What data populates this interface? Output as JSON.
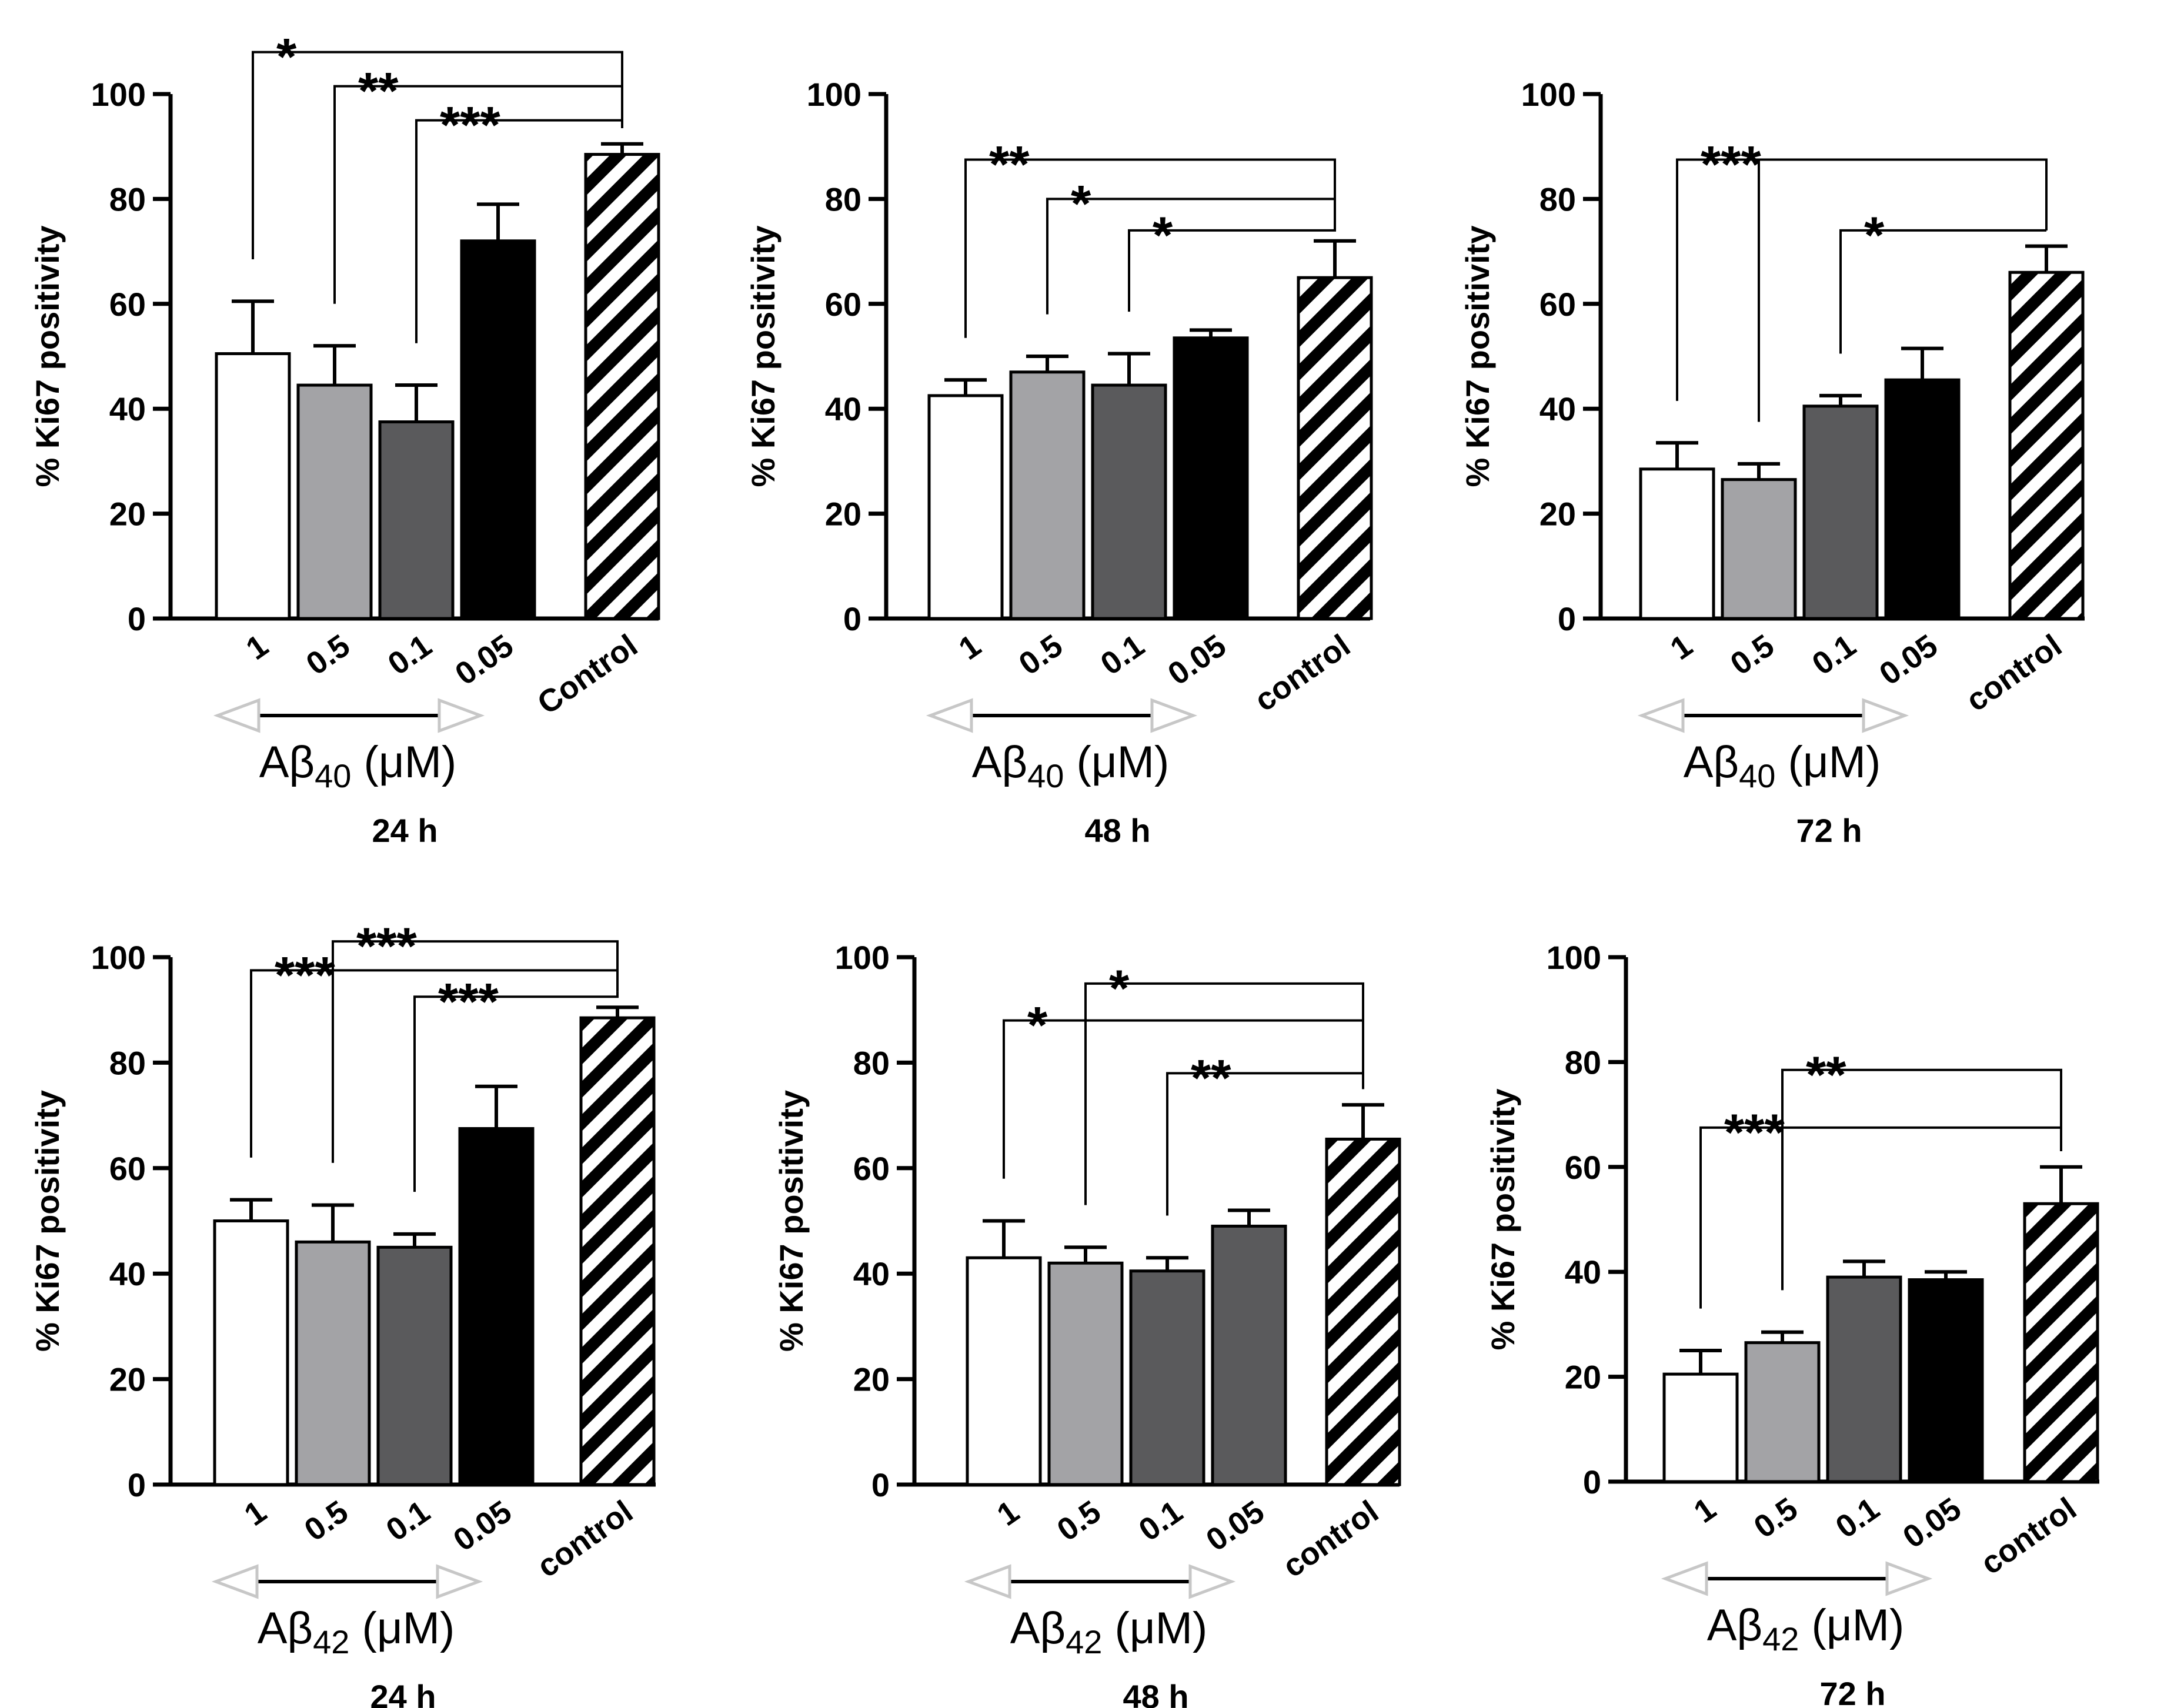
{
  "chart_data": [
    {
      "type": "bar",
      "panel": "top-left",
      "categories": [
        "1",
        "0.5",
        "0.1",
        "0.05",
        "Control"
      ],
      "values": [
        50.5,
        44.5,
        37.5,
        72,
        88.5
      ],
      "errors": [
        10,
        7.5,
        7,
        7,
        2
      ],
      "fills": [
        "white",
        "light-gray",
        "dark-gray",
        "black",
        "hatched"
      ],
      "ylabel": "% Ki67 positivity",
      "ylim": [
        0,
        100
      ],
      "yticks": [
        "0",
        "20",
        "40",
        "60",
        "80",
        "100"
      ],
      "group_label": "Aβ40 (μM)",
      "peptide": "Aβ",
      "peptide_sub": "40",
      "unit": " (μM)",
      "time_label": "24 h",
      "significance": [
        {
          "from": "1",
          "to": "Control",
          "stars": "*",
          "level": 108
        },
        {
          "from": "0.5",
          "to": "Control",
          "stars": "**",
          "level": 101.5
        },
        {
          "from": "0.1",
          "to": "Control",
          "stars": "***",
          "level": 95
        }
      ]
    },
    {
      "type": "bar",
      "panel": "top-middle",
      "categories": [
        "1",
        "0.5",
        "0.1",
        "0.05",
        "control"
      ],
      "values": [
        42.5,
        47,
        44.5,
        53.5,
        65
      ],
      "errors": [
        3,
        3,
        6,
        1.5,
        7
      ],
      "fills": [
        "white",
        "light-gray",
        "dark-gray",
        "black",
        "hatched"
      ],
      "ylabel": "% Ki67 positivity",
      "ylim": [
        0,
        100
      ],
      "yticks": [
        "0",
        "20",
        "40",
        "60",
        "80",
        "100"
      ],
      "group_label": "Aβ40 (μM)",
      "peptide": "Aβ",
      "peptide_sub": "40",
      "unit": " (μM)",
      "time_label": "48 h",
      "significance": [
        {
          "from": "1",
          "to": "control",
          "stars": "**",
          "level": 87.5
        },
        {
          "from": "0.5",
          "to": "control",
          "stars": "*",
          "level": 80
        },
        {
          "from": "0.1",
          "to": "control",
          "stars": "*",
          "level": 74
        }
      ]
    },
    {
      "type": "bar",
      "panel": "top-right",
      "categories": [
        "1",
        "0.5",
        "0.1",
        "0.05",
        "control"
      ],
      "values": [
        28.5,
        26.5,
        40.5,
        45.5,
        66
      ],
      "errors": [
        5,
        3,
        2,
        6,
        5
      ],
      "fills": [
        "white",
        "light-gray",
        "dark-gray",
        "black",
        "hatched"
      ],
      "ylabel": "% Ki67 positivity",
      "ylim": [
        0,
        100
      ],
      "yticks": [
        "0",
        "20",
        "40",
        "60",
        "80",
        "100"
      ],
      "group_label": "Aβ40 (μM)",
      "peptide": "Aβ",
      "peptide_sub": "40",
      "unit": " (μM)",
      "time_label": "72 h",
      "significance": [
        {
          "from": "1",
          "to": "control",
          "stars": "***",
          "level": 87.5
        },
        {
          "from": "0.5",
          "to": "control",
          "stars": "",
          "level": 87.5
        },
        {
          "from": "0.1",
          "to": "control",
          "stars": "*",
          "level": 74
        }
      ]
    },
    {
      "type": "bar",
      "panel": "bottom-left",
      "categories": [
        "1",
        "0.5",
        "0.1",
        "0.05",
        "control"
      ],
      "values": [
        50,
        46,
        45,
        67.5,
        88.5
      ],
      "errors": [
        4,
        7,
        2.5,
        8,
        2
      ],
      "fills": [
        "white",
        "light-gray",
        "dark-gray",
        "black",
        "hatched"
      ],
      "ylabel": "% Ki67 positivity",
      "ylim": [
        0,
        100
      ],
      "yticks": [
        "0",
        "20",
        "40",
        "60",
        "80",
        "100"
      ],
      "group_label": "Aβ42 (μM)",
      "peptide": "Aβ",
      "peptide_sub": "42",
      "unit": " (μM)",
      "time_label": "24 h",
      "significance": [
        {
          "from": "0.5",
          "to": "control",
          "stars": "***",
          "level": 103
        },
        {
          "from": "1",
          "to": "control",
          "stars": "***",
          "level": 97.5
        },
        {
          "from": "0.1",
          "to": "control",
          "stars": "***",
          "level": 92.5
        }
      ]
    },
    {
      "type": "bar",
      "panel": "bottom-middle",
      "categories": [
        "1",
        "0.5",
        "0.1",
        "0.05",
        "control"
      ],
      "values": [
        43,
        42,
        40.5,
        49,
        65.5
      ],
      "errors": [
        7,
        3,
        2.5,
        3,
        6.5
      ],
      "fills": [
        "white",
        "light-gray",
        "dark-gray",
        "dark-gray",
        "hatched"
      ],
      "ylabel": "% Ki67 positivity",
      "ylim": [
        0,
        100
      ],
      "yticks": [
        "0",
        "20",
        "40",
        "60",
        "80",
        "100"
      ],
      "group_label": "Aβ42 (μM)",
      "peptide": "Aβ",
      "peptide_sub": "42",
      "unit": " (μM)",
      "time_label": "48 h",
      "significance": [
        {
          "from": "0.5",
          "to": "control",
          "stars": "*",
          "level": 95
        },
        {
          "from": "1",
          "to": "control",
          "stars": "*",
          "level": 88
        },
        {
          "from": "0.1",
          "to": "control",
          "stars": "**",
          "level": 78
        }
      ]
    },
    {
      "type": "bar",
      "panel": "bottom-right",
      "categories": [
        "1",
        "0.5",
        "0.1",
        "0.05",
        "control"
      ],
      "values": [
        20.5,
        26.5,
        39,
        38.5,
        53
      ],
      "errors": [
        4.5,
        2,
        3,
        1.5,
        7
      ],
      "fills": [
        "white",
        "light-gray",
        "dark-gray",
        "black",
        "hatched"
      ],
      "ylabel": "% Ki67 positivity",
      "ylim": [
        0,
        100
      ],
      "yticks": [
        "0",
        "20",
        "40",
        "60",
        "80",
        "100"
      ],
      "group_label": "Aβ42 (μM)",
      "peptide": "Aβ",
      "peptide_sub": "42",
      "unit": " (μM)",
      "time_label": "72 h",
      "significance": [
        {
          "from": "0.5",
          "to": "control",
          "stars": "**",
          "level": 78.5
        },
        {
          "from": "1",
          "to": "control",
          "stars": "***",
          "level": 67.5
        }
      ]
    }
  ],
  "colors": {
    "white": "#ffffff",
    "light-gray": "#a3a3a6",
    "dark-gray": "#5a5a5c",
    "black": "#000000",
    "axis": "#000000",
    "arrow": "#c7c7c7"
  }
}
